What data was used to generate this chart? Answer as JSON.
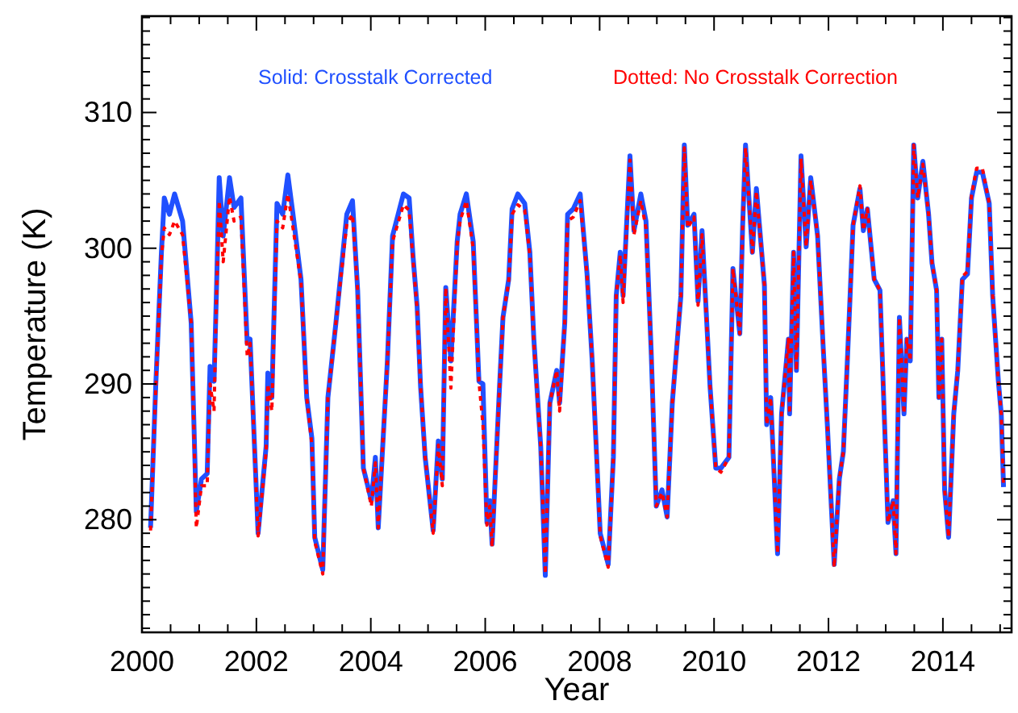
{
  "chart_data": {
    "type": "line",
    "xlabel": "Year",
    "ylabel": "Temperature (K)",
    "legend": "top",
    "grid": false,
    "xlim": [
      2000,
      2015.2
    ],
    "ylim": [
      271.7,
      317.1
    ],
    "xticks": [
      2000,
      {
        "value": 2000.5,
        "label": null
      },
      {
        "value": 2001,
        "label": null
      },
      {
        "value": 2001.5,
        "label": null
      },
      2002,
      {
        "value": 2002.5,
        "label": null
      },
      {
        "value": 2003,
        "label": null
      },
      {
        "value": 2003.5,
        "label": null
      },
      2004,
      {
        "value": 2004.5,
        "label": null
      },
      {
        "value": 2005,
        "label": null
      },
      {
        "value": 2005.5,
        "label": null
      },
      2006,
      {
        "value": 2006.5,
        "label": null
      },
      {
        "value": 2007,
        "label": null
      },
      {
        "value": 2007.5,
        "label": null
      },
      2008,
      {
        "value": 2008.5,
        "label": null
      },
      {
        "value": 2009,
        "label": null
      },
      {
        "value": 2009.5,
        "label": null
      },
      2010,
      {
        "value": 2010.5,
        "label": null
      },
      {
        "value": 2011,
        "label": null
      },
      {
        "value": 2011.5,
        "label": null
      },
      2012,
      {
        "value": 2012.5,
        "label": null
      },
      {
        "value": 2013,
        "label": null
      },
      {
        "value": 2013.5,
        "label": null
      },
      2014,
      {
        "value": 2014.5,
        "label": null
      },
      {
        "value": 2015,
        "label": null
      }
    ],
    "yticks": [
      {
        "value": 272,
        "label": null
      },
      {
        "value": 273,
        "label": null
      },
      {
        "value": 274,
        "label": null
      },
      {
        "value": 275,
        "label": null
      },
      {
        "value": 276,
        "label": null
      },
      {
        "value": 277,
        "label": null
      },
      {
        "value": 278,
        "label": null
      },
      {
        "value": 279,
        "label": null
      },
      280,
      {
        "value": 281,
        "label": null
      },
      {
        "value": 282,
        "label": null
      },
      {
        "value": 283,
        "label": null
      },
      {
        "value": 284,
        "label": null
      },
      {
        "value": 285,
        "label": null
      },
      {
        "value": 286,
        "label": null
      },
      {
        "value": 287,
        "label": null
      },
      {
        "value": 288,
        "label": null
      },
      {
        "value": 289,
        "label": null
      },
      290,
      {
        "value": 291,
        "label": null
      },
      {
        "value": 292,
        "label": null
      },
      {
        "value": 293,
        "label": null
      },
      {
        "value": 294,
        "label": null
      },
      {
        "value": 295,
        "label": null
      },
      {
        "value": 296,
        "label": null
      },
      {
        "value": 297,
        "label": null
      },
      {
        "value": 298,
        "label": null
      },
      {
        "value": 299,
        "label": null
      },
      300,
      {
        "value": 301,
        "label": null
      },
      {
        "value": 302,
        "label": null
      },
      {
        "value": 303,
        "label": null
      },
      {
        "value": 304,
        "label": null
      },
      {
        "value": 305,
        "label": null
      },
      {
        "value": 306,
        "label": null
      },
      {
        "value": 307,
        "label": null
      },
      {
        "value": 308,
        "label": null
      },
      {
        "value": 309,
        "label": null
      },
      310,
      {
        "value": 311,
        "label": null
      },
      {
        "value": 312,
        "label": null
      },
      {
        "value": 313,
        "label": null
      },
      {
        "value": 314,
        "label": null
      },
      {
        "value": 315,
        "label": null
      },
      {
        "value": 316,
        "label": null
      },
      {
        "value": 317,
        "label": null
      }
    ],
    "x": [
      2000.15,
      2000.24,
      2000.34,
      2000.39,
      2000.48,
      2000.57,
      2000.71,
      2000.86,
      2000.95,
      2001.04,
      2001.14,
      2001.19,
      2001.26,
      2001.3,
      2001.35,
      2001.42,
      2001.53,
      2001.61,
      2001.73,
      2001.84,
      2001.89,
      2002.03,
      2002.17,
      2002.2,
      2002.27,
      2002.36,
      2002.46,
      2002.55,
      2002.64,
      2002.78,
      2002.88,
      2002.97,
      2003.02,
      2003.16,
      2003.25,
      2003.39,
      2003.58,
      2003.68,
      2003.77,
      2003.87,
      2004.01,
      2004.08,
      2004.13,
      2004.29,
      2004.38,
      2004.57,
      2004.67,
      2004.74,
      2004.81,
      2004.87,
      2004.95,
      2005.09,
      2005.18,
      2005.25,
      2005.31,
      2005.4,
      2005.51,
      2005.56,
      2005.67,
      2005.79,
      2005.89,
      2005.96,
      2006.03,
      2006.08,
      2006.12,
      2006.25,
      2006.31,
      2006.41,
      2006.47,
      2006.57,
      2006.69,
      2006.78,
      2006.85,
      2006.97,
      2007.05,
      2007.13,
      2007.25,
      2007.3,
      2007.39,
      2007.44,
      2007.54,
      2007.66,
      2007.78,
      2007.87,
      2008.01,
      2008.15,
      2008.24,
      2008.29,
      2008.36,
      2008.41,
      2008.53,
      2008.6,
      2008.72,
      2008.81,
      2008.9,
      2008.99,
      2009.09,
      2009.18,
      2009.27,
      2009.42,
      2009.48,
      2009.54,
      2009.65,
      2009.72,
      2009.79,
      2009.93,
      2010.03,
      2010.12,
      2010.26,
      2010.33,
      2010.45,
      2010.5,
      2010.55,
      2010.67,
      2010.74,
      2010.88,
      2010.92,
      2010.99,
      2011.11,
      2011.18,
      2011.3,
      2011.32,
      2011.39,
      2011.44,
      2011.52,
      2011.61,
      2011.69,
      2011.81,
      2011.91,
      2011.98,
      2012.1,
      2012.19,
      2012.26,
      2012.33,
      2012.43,
      2012.55,
      2012.61,
      2012.68,
      2012.8,
      2012.9,
      2013.04,
      2013.13,
      2013.18,
      2013.24,
      2013.32,
      2013.37,
      2013.43,
      2013.49,
      2013.56,
      2013.65,
      2013.75,
      2013.81,
      2013.89,
      2013.93,
      2013.98,
      2014.03,
      2014.1,
      2014.19,
      2014.26,
      2014.34,
      2014.43,
      2014.5,
      2014.59,
      2014.69,
      2014.81,
      2014.87,
      2014.97,
      2015.02,
      2015.06
    ],
    "series": [
      {
        "name": "Dotted: No Crosstalk Correction",
        "color": "#ff0000",
        "line_style": "dotted",
        "values": [
          279.2,
          289.5,
          299.4,
          301.5,
          301.0,
          302.0,
          301.0,
          294.5,
          279.4,
          282.5,
          282.5,
          290.0,
          288.0,
          296.0,
          303.5,
          299.0,
          303.8,
          302.0,
          302.3,
          292.0,
          293.0,
          278.8,
          285.0,
          290.0,
          288.0,
          302.0,
          301.5,
          304.0,
          301.5,
          297.5,
          289.0,
          285.5,
          278.4,
          276.0,
          289.0,
          294.5,
          301.8,
          302.5,
          296.9,
          283.8,
          281.0,
          284.2,
          279.4,
          291.7,
          300.5,
          303.2,
          302.8,
          299.0,
          295.5,
          289.8,
          284.6,
          279.0,
          285.5,
          282.5,
          297.1,
          289.7,
          300.3,
          302.0,
          303.5,
          300.0,
          290.2,
          287.0,
          279.6,
          281.0,
          278.0,
          289.8,
          294.9,
          297.5,
          302.5,
          303.2,
          302.8,
          299.5,
          293.0,
          285.4,
          276.0,
          288.6,
          291.0,
          288.0,
          294.5,
          302.0,
          302.3,
          303.5,
          298.0,
          291.7,
          278.8,
          276.5,
          284.6,
          296.5,
          299.5,
          296.0,
          306.5,
          301.0,
          303.5,
          301.5,
          292.5,
          281.0,
          282.0,
          280.2,
          288.6,
          296.5,
          307.4,
          301.5,
          302.3,
          295.8,
          301.0,
          289.8,
          283.8,
          283.5,
          284.6,
          298.5,
          293.7,
          301.7,
          307.4,
          299.7,
          304.2,
          297.3,
          287.0,
          289.0,
          277.5,
          287.8,
          293.3,
          287.8,
          299.7,
          291.0,
          306.6,
          300.1,
          305.0,
          300.9,
          292.5,
          287.0,
          276.5,
          283.0,
          285.0,
          291.7,
          301.7,
          304.6,
          301.3,
          302.9,
          297.7,
          296.9,
          279.8,
          281.4,
          277.5,
          294.9,
          287.8,
          293.3,
          291.7,
          307.6,
          303.7,
          306.2,
          302.5,
          298.9,
          296.9,
          289.0,
          293.3,
          282.2,
          278.7,
          287.8,
          291.0,
          297.9,
          298.3,
          303.9,
          305.9,
          305.9,
          303.3,
          296.5,
          290.2,
          287.8,
          282.4
        ]
      },
      {
        "name": "Solid: Crosstalk Corrected",
        "color": "#2050ff",
        "line_style": "solid",
        "values": [
          279.4,
          289.8,
          299.7,
          303.7,
          302.5,
          304.0,
          302.0,
          294.5,
          280.6,
          283.0,
          283.4,
          291.3,
          290.2,
          296.5,
          305.2,
          300.9,
          305.2,
          303.0,
          303.7,
          293.0,
          293.3,
          279.0,
          285.4,
          290.8,
          289.0,
          303.3,
          302.5,
          305.4,
          302.5,
          297.7,
          289.0,
          286.0,
          278.7,
          276.3,
          289.0,
          294.5,
          302.5,
          303.5,
          296.9,
          283.8,
          281.4,
          284.6,
          279.4,
          291.7,
          300.9,
          304.0,
          303.7,
          299.3,
          295.7,
          289.8,
          284.6,
          279.2,
          285.8,
          283.0,
          297.1,
          291.7,
          300.5,
          302.5,
          304.0,
          300.5,
          290.2,
          290.0,
          279.8,
          281.4,
          278.2,
          289.8,
          294.9,
          297.7,
          302.9,
          304.0,
          303.3,
          299.7,
          293.3,
          285.4,
          275.9,
          288.6,
          291.0,
          288.6,
          294.5,
          302.5,
          302.9,
          304.0,
          298.1,
          291.7,
          279.0,
          276.7,
          284.6,
          296.5,
          299.7,
          296.5,
          306.8,
          301.3,
          304.0,
          302.0,
          292.5,
          281.0,
          282.2,
          280.2,
          288.6,
          296.5,
          307.6,
          301.7,
          302.5,
          296.1,
          301.3,
          289.8,
          283.8,
          283.8,
          284.6,
          298.5,
          293.7,
          301.7,
          307.6,
          299.7,
          304.4,
          297.3,
          287.0,
          289.0,
          277.5,
          287.8,
          293.3,
          287.8,
          299.7,
          291.0,
          306.8,
          300.1,
          305.2,
          300.9,
          292.5,
          287.0,
          276.7,
          283.0,
          285.0,
          291.7,
          301.7,
          304.4,
          301.3,
          302.9,
          297.7,
          296.9,
          279.8,
          281.4,
          277.5,
          294.9,
          287.8,
          293.3,
          291.7,
          307.6,
          303.7,
          306.4,
          302.5,
          298.9,
          296.9,
          289.0,
          293.3,
          282.2,
          278.7,
          287.8,
          291.0,
          297.7,
          298.1,
          303.7,
          305.6,
          305.6,
          303.3,
          296.5,
          290.2,
          287.8,
          282.4
        ]
      }
    ]
  }
}
